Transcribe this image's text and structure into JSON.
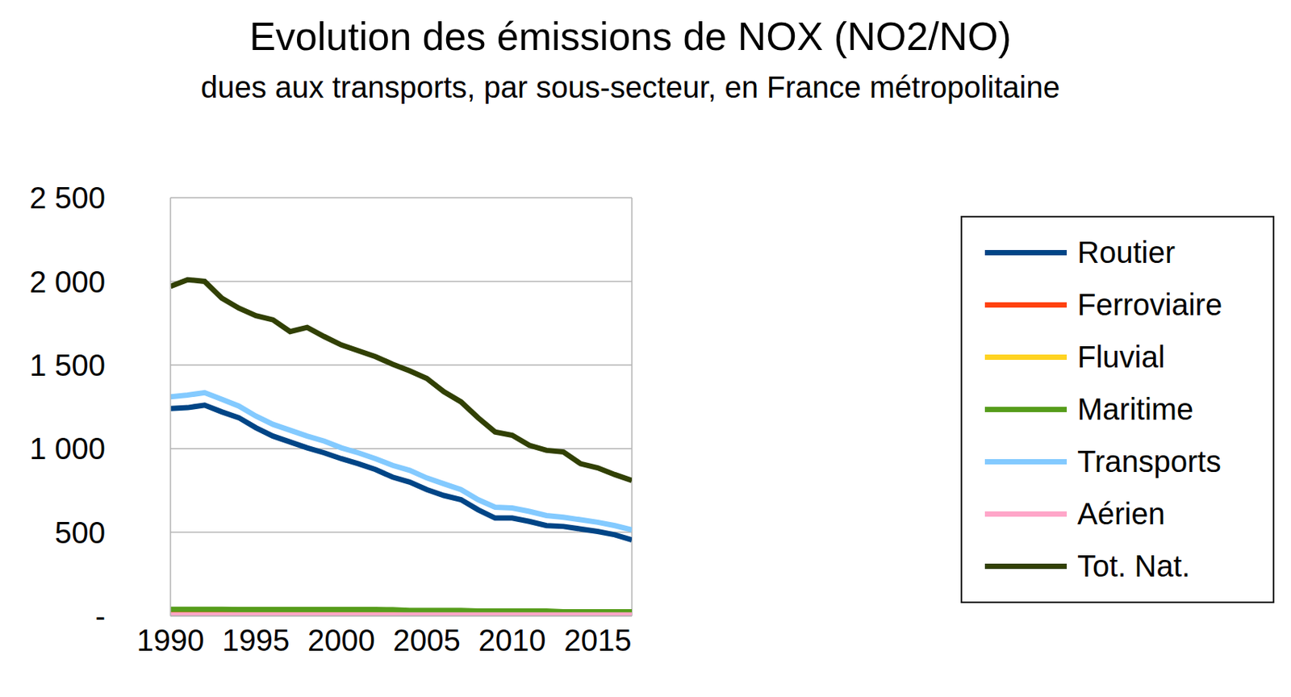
{
  "chart_data": {
    "type": "line",
    "title": "Evolution des émissions de NOX (NO2/NO)",
    "subtitle": "dues aux transports, par sous-secteur, en France métropolitaine",
    "x": [
      1990,
      1991,
      1992,
      1993,
      1994,
      1995,
      1996,
      1997,
      1998,
      1999,
      2000,
      2001,
      2002,
      2003,
      2004,
      2005,
      2006,
      2007,
      2008,
      2009,
      2010,
      2011,
      2012,
      2013,
      2014,
      2015,
      2016,
      2017
    ],
    "xlim": [
      1990,
      2017
    ],
    "xticks": [
      1990,
      1995,
      2000,
      2005,
      2010,
      2015
    ],
    "ylim": [
      0,
      2500
    ],
    "yticks": [
      {
        "value": 0,
        "label": "-"
      },
      500,
      {
        "value": 1000,
        "label": "1 000"
      },
      {
        "value": 1500,
        "label": "1 500"
      },
      {
        "value": 2000,
        "label": "2 000"
      },
      {
        "value": 2500,
        "label": "2 500"
      }
    ],
    "grid": true,
    "legend": "right",
    "series": [
      {
        "name": "Routier",
        "color": "#004586",
        "values": [
          1240,
          1245,
          1260,
          1220,
          1185,
          1125,
          1075,
          1040,
          1005,
          975,
          940,
          910,
          875,
          830,
          800,
          755,
          720,
          695,
          635,
          585,
          585,
          565,
          540,
          535,
          520,
          505,
          485,
          455
        ]
      },
      {
        "name": "Ferroviaire",
        "color": "#ff420e",
        "values": [
          25,
          25,
          25,
          24,
          22,
          21,
          21,
          20,
          20,
          20,
          19,
          19,
          18,
          18,
          18,
          17,
          17,
          17,
          16,
          16,
          16,
          16,
          15,
          15,
          15,
          15,
          15,
          15
        ]
      },
      {
        "name": "Fluvial",
        "color": "#ffd320",
        "values": [
          5,
          5,
          5,
          5,
          4,
          4,
          4,
          4,
          4,
          4,
          4,
          4,
          4,
          4,
          4,
          4,
          4,
          4,
          4,
          4,
          4,
          4,
          4,
          4,
          4,
          4,
          4,
          4
        ]
      },
      {
        "name": "Maritime",
        "color": "#579d1c",
        "values": [
          40,
          40,
          40,
          40,
          38,
          38,
          38,
          38,
          38,
          38,
          38,
          38,
          38,
          37,
          33,
          33,
          33,
          33,
          30,
          30,
          30,
          30,
          30,
          25,
          25,
          25,
          25,
          25
        ]
      },
      {
        "name": "Transports",
        "color": "#83caff",
        "values": [
          1310,
          1320,
          1335,
          1295,
          1255,
          1195,
          1145,
          1110,
          1075,
          1045,
          1005,
          975,
          940,
          900,
          870,
          825,
          790,
          755,
          695,
          650,
          645,
          625,
          600,
          590,
          575,
          560,
          540,
          515
        ]
      },
      {
        "name": "Aérien",
        "color": "#ffa6c9",
        "values": [
          6,
          6,
          6,
          6,
          6,
          6,
          6,
          6,
          6,
          6,
          6,
          6,
          6,
          6,
          6,
          6,
          6,
          6,
          6,
          6,
          6,
          6,
          6,
          6,
          6,
          6,
          6,
          6
        ]
      },
      {
        "name": "Tot. Nat.",
        "color": "#314004",
        "values": [
          1970,
          2010,
          2000,
          1900,
          1840,
          1795,
          1770,
          1700,
          1725,
          1670,
          1620,
          1585,
          1550,
          1505,
          1465,
          1420,
          1340,
          1280,
          1185,
          1100,
          1080,
          1020,
          990,
          980,
          910,
          885,
          845,
          810
        ]
      }
    ]
  }
}
